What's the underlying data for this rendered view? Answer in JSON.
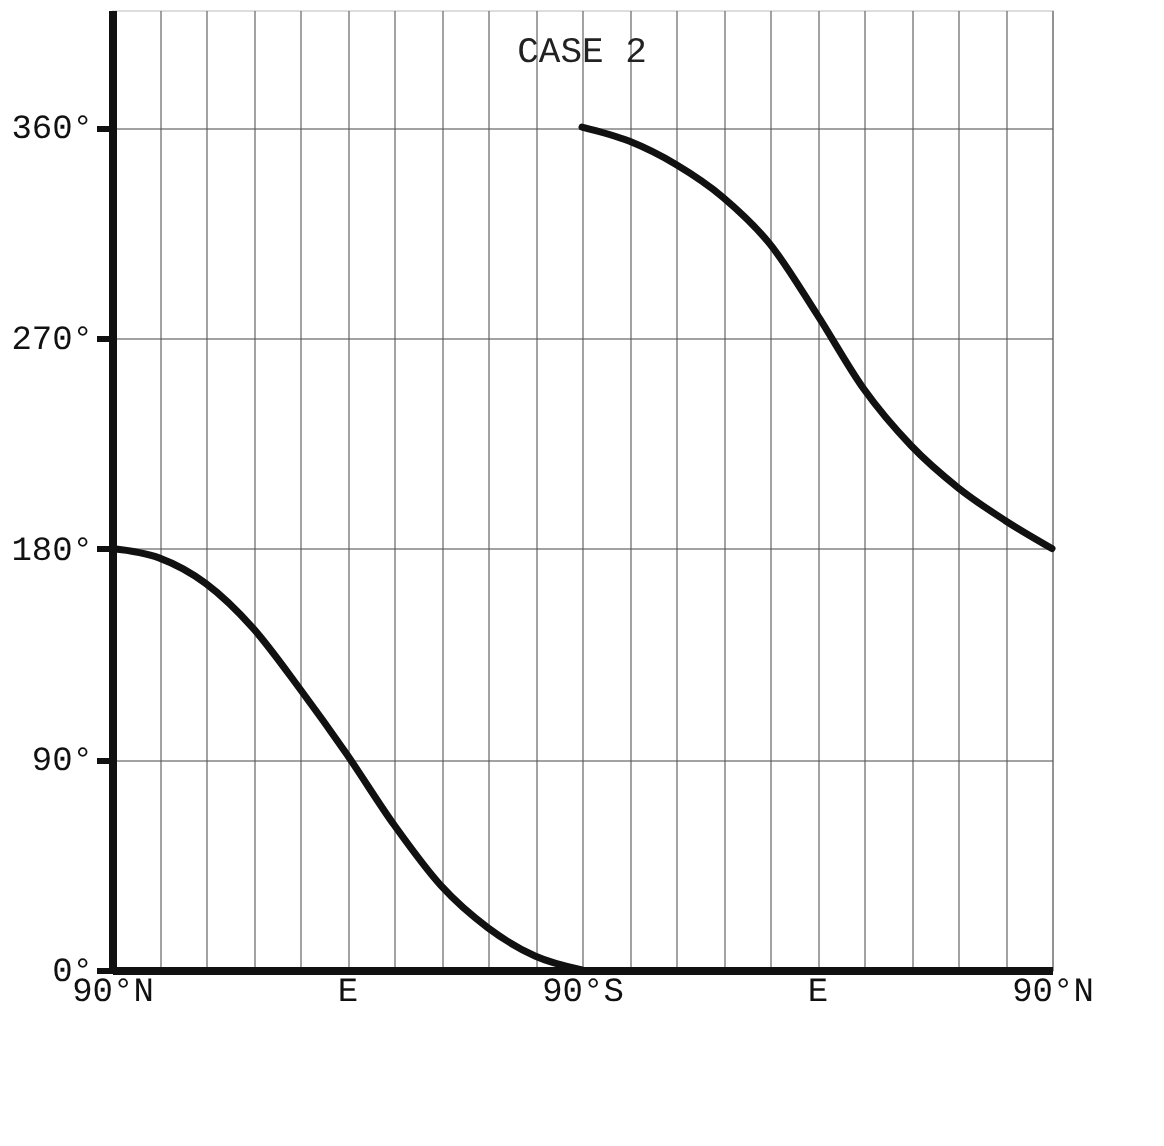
{
  "chart_data": {
    "type": "line",
    "title": "CASE 2",
    "categories": [
      "90°N",
      null,
      null,
      null,
      null,
      "E",
      null,
      null,
      null,
      null,
      "90°S",
      null,
      null,
      null,
      null,
      "E",
      null,
      null,
      null,
      null,
      "90°N"
    ],
    "ylim": [
      0,
      410
    ],
    "yticks": [
      {
        "value": 0,
        "label": "0°"
      },
      {
        "value": 90,
        "label": "90°"
      },
      {
        "value": 180,
        "label": "180°"
      },
      {
        "value": 270,
        "label": "270°"
      },
      {
        "value": 360,
        "label": "360°"
      }
    ],
    "grid": true,
    "marker": "none",
    "line_style": "solid",
    "series": [
      {
        "color": "#111111",
        "values": [
          180,
          176,
          165,
          146,
          120,
          92,
          62,
          36,
          18,
          6,
          0,
          null,
          null,
          null,
          null,
          null,
          null,
          null,
          null,
          null,
          null
        ]
      },
      {
        "color": "#111111",
        "values": [
          null,
          null,
          null,
          null,
          null,
          null,
          null,
          null,
          null,
          null,
          360,
          354,
          344,
          330,
          310,
          280,
          248,
          224,
          206,
          192,
          180
        ]
      }
    ]
  }
}
